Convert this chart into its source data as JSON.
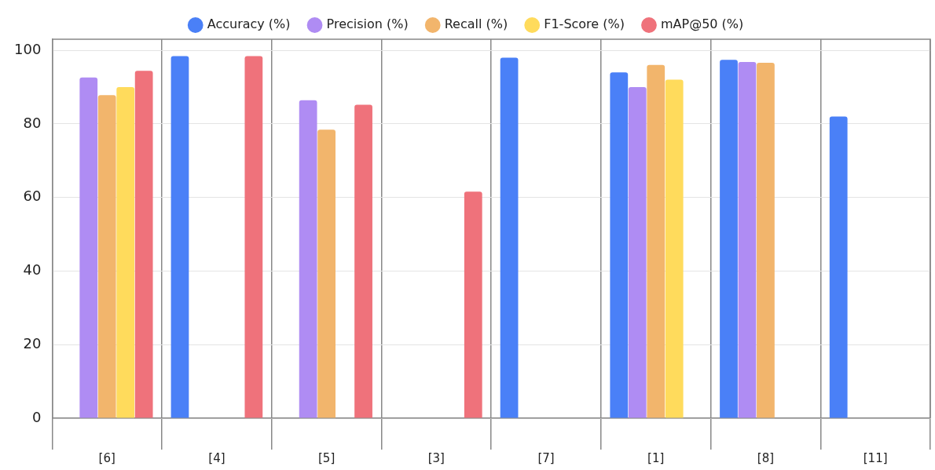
{
  "chart_data": {
    "type": "bar",
    "categories": [
      "[6]",
      "[4]",
      "[5]",
      "[3]",
      "[7]",
      "[1]",
      "[8]",
      "[11]"
    ],
    "series": [
      {
        "name": "Accuracy (%)",
        "color": "#4a80f7",
        "values": [
          null,
          98.4,
          null,
          null,
          98,
          94,
          97.4,
          82
        ]
      },
      {
        "name": "Precision (%)",
        "color": "#af8cf3",
        "values": [
          92.6,
          null,
          86.4,
          null,
          null,
          90,
          96.8,
          null
        ]
      },
      {
        "name": "Recall (%)",
        "color": "#f2b56c",
        "values": [
          87.8,
          null,
          78.4,
          null,
          null,
          96,
          96.6,
          null
        ]
      },
      {
        "name": "F1-Score (%)",
        "color": "#ffdb5c",
        "values": [
          90,
          null,
          null,
          null,
          null,
          92,
          null,
          null
        ]
      },
      {
        "name": "mAP@50 (%)",
        "color": "#ef727b",
        "values": [
          94.4,
          98.4,
          85.2,
          61.6,
          null,
          null,
          null,
          null
        ]
      }
    ],
    "ylim": [
      0,
      103
    ],
    "yticks": [
      0,
      20,
      40,
      60,
      80,
      100
    ],
    "grid": true,
    "legend": "top"
  }
}
